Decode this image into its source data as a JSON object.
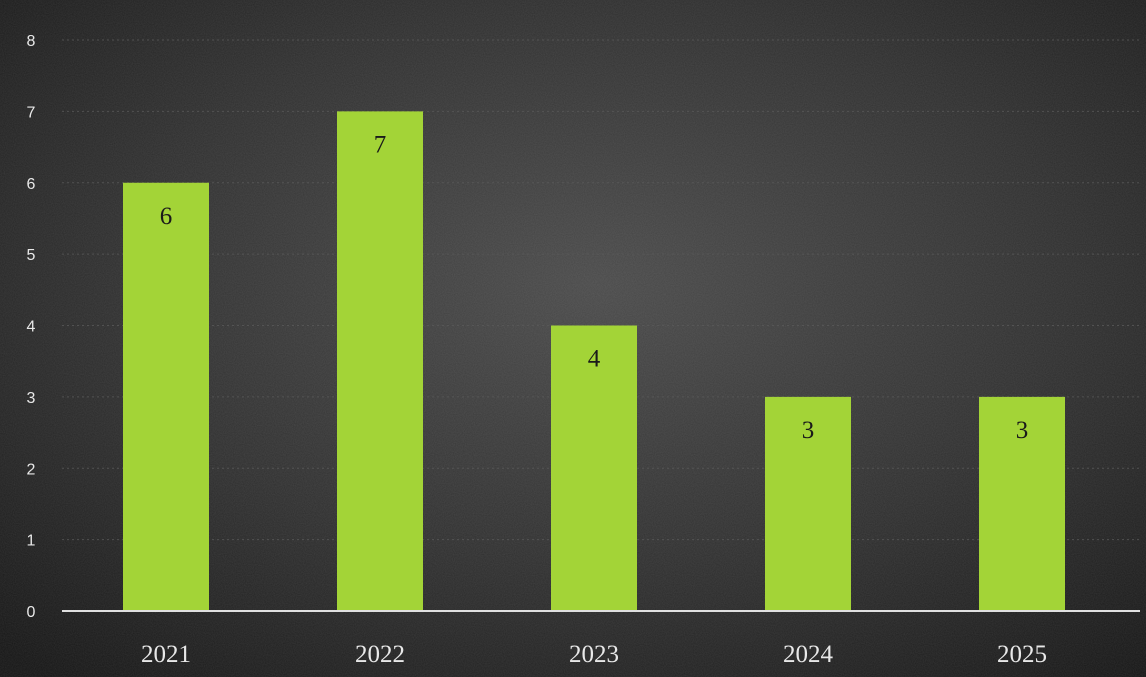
{
  "chart_data": {
    "type": "bar",
    "categories": [
      "2021",
      "2022",
      "2023",
      "2024",
      "2025"
    ],
    "values": [
      6,
      7,
      4,
      3,
      3
    ],
    "data_labels": [
      "6",
      "7",
      "4",
      "3",
      "3"
    ],
    "title": "",
    "xlabel": "",
    "ylabel": "",
    "ylim": [
      0,
      8
    ],
    "y_ticks": [
      "0",
      "1",
      "2",
      "3",
      "4",
      "5",
      "6",
      "7",
      "8"
    ],
    "grid": true,
    "legend": "none",
    "colors": {
      "bar": "#a3d437",
      "background": "#2e2e2e",
      "axis": "#e0e0e0",
      "grid": "#5a5a5a"
    }
  }
}
